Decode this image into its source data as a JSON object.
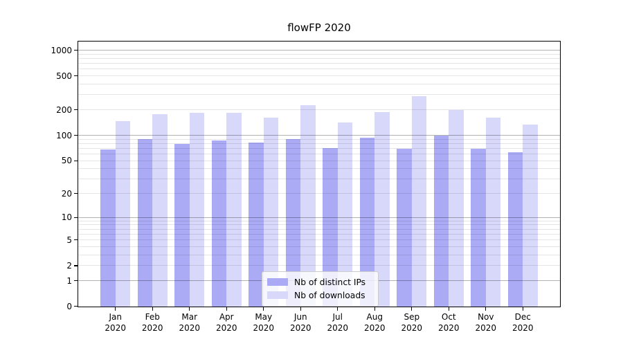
{
  "title": "flowFP 2020",
  "chart_data": {
    "type": "bar",
    "title": "flowFP 2020",
    "categories": [
      "Jan 2020",
      "Feb 2020",
      "Mar 2020",
      "Apr 2020",
      "May 2020",
      "Jun 2020",
      "Jul 2020",
      "Aug 2020",
      "Sep 2020",
      "Oct 2020",
      "Nov 2020",
      "Dec 2020"
    ],
    "series": [
      {
        "name": "Nb of distinct IPs",
        "color": "#aaaaf5",
        "values": [
          68,
          90,
          79,
          88,
          83,
          90,
          71,
          94,
          70,
          100,
          70,
          63
        ]
      },
      {
        "name": "Nb of downloads",
        "color": "#d8d8fa",
        "values": [
          148,
          178,
          186,
          184,
          163,
          228,
          144,
          190,
          290,
          200,
          163,
          134
        ]
      }
    ],
    "yscale": "log10(1+x)",
    "yticks": [
      0,
      1,
      2,
      5,
      10,
      20,
      50,
      100,
      200,
      500,
      1000
    ],
    "ylim": [
      0,
      1300
    ],
    "xlabel": "",
    "ylabel": "",
    "grid": true,
    "legend_position": "lower center"
  },
  "colors": {
    "background": "#ffffff",
    "axis": "#000000",
    "grid_major": "rgba(0,0,0,0.30)",
    "grid_minor": "rgba(0,0,0,0.10)",
    "legend_bg": "rgba(255,255,255,0.8)",
    "legend_border": "#cccccc"
  }
}
